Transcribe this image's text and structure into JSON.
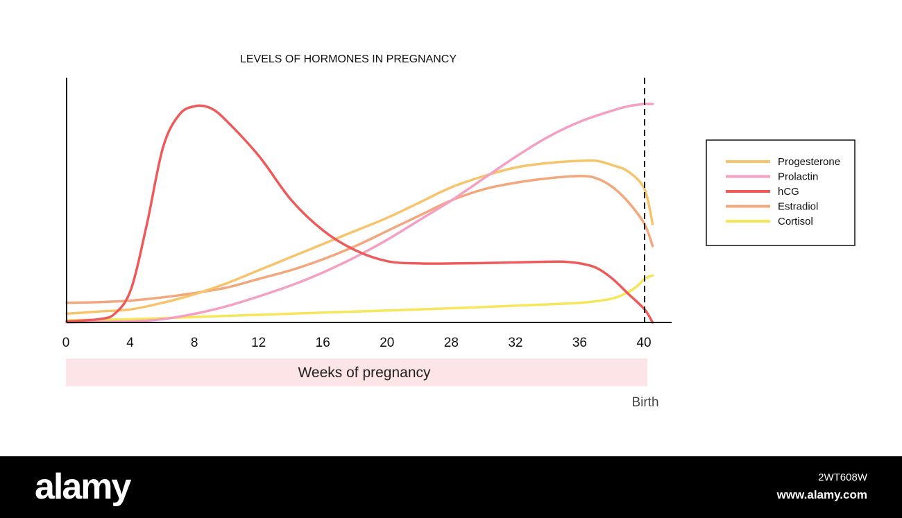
{
  "chart_data": {
    "type": "line",
    "title": "LEVELS OF HORMONES IN PREGNANCY",
    "xlabel": "Weeks of pregnancy",
    "ylabel": "",
    "x_ticks": [
      "0",
      "4",
      "8",
      "12",
      "16",
      "20",
      "28",
      "32",
      "36",
      "40"
    ],
    "ylim": [
      0,
      100
    ],
    "grid": false,
    "legend_position": "right",
    "annotation": "Birth",
    "series": [
      {
        "name": "Progesterone",
        "color": "#f7c46c",
        "points": [
          [
            0,
            4
          ],
          [
            2,
            5
          ],
          [
            4,
            6
          ],
          [
            6,
            9
          ],
          [
            8,
            13
          ],
          [
            10,
            18
          ],
          [
            12,
            24
          ],
          [
            14,
            30
          ],
          [
            16,
            36
          ],
          [
            18,
            42
          ],
          [
            20,
            48
          ],
          [
            22,
            55
          ],
          [
            24,
            62
          ],
          [
            26,
            67
          ],
          [
            28,
            71
          ],
          [
            30,
            73
          ],
          [
            32,
            74
          ],
          [
            33,
            74
          ],
          [
            34,
            72
          ],
          [
            35,
            69
          ],
          [
            36,
            61
          ],
          [
            36.5,
            45
          ]
        ]
      },
      {
        "name": "Prolactin",
        "color": "#f4a0c4",
        "points": [
          [
            0,
            0
          ],
          [
            4,
            0.5
          ],
          [
            6,
            1.5
          ],
          [
            8,
            4
          ],
          [
            10,
            7.5
          ],
          [
            12,
            12
          ],
          [
            14,
            17
          ],
          [
            16,
            23
          ],
          [
            18,
            30
          ],
          [
            20,
            38
          ],
          [
            22,
            47
          ],
          [
            24,
            56
          ],
          [
            26,
            66
          ],
          [
            28,
            76
          ],
          [
            30,
            85
          ],
          [
            32,
            92
          ],
          [
            34,
            97
          ],
          [
            35,
            99
          ],
          [
            36,
            100
          ],
          [
            36.5,
            100
          ]
        ]
      },
      {
        "name": "hCG",
        "color": "#ee5a5a",
        "points": [
          [
            0,
            0.5
          ],
          [
            2,
            1.5
          ],
          [
            3,
            4
          ],
          [
            4,
            15
          ],
          [
            5,
            45
          ],
          [
            6,
            80
          ],
          [
            7,
            95
          ],
          [
            8,
            99
          ],
          [
            9,
            98
          ],
          [
            10,
            92
          ],
          [
            12,
            76
          ],
          [
            14,
            56
          ],
          [
            16,
            42
          ],
          [
            18,
            33
          ],
          [
            20,
            28
          ],
          [
            22,
            27
          ],
          [
            24,
            27
          ],
          [
            26,
            27.2
          ],
          [
            28,
            27.5
          ],
          [
            30,
            27.8
          ],
          [
            31,
            27.8
          ],
          [
            32,
            27
          ],
          [
            33,
            25
          ],
          [
            34,
            20
          ],
          [
            35,
            13
          ],
          [
            36,
            6
          ],
          [
            36.5,
            0
          ]
        ]
      },
      {
        "name": "Estradiol",
        "color": "#f2a77d",
        "points": [
          [
            0,
            9
          ],
          [
            2,
            9.3
          ],
          [
            4,
            10
          ],
          [
            6,
            11.5
          ],
          [
            8,
            13.5
          ],
          [
            10,
            16
          ],
          [
            12,
            20
          ],
          [
            14,
            24
          ],
          [
            16,
            29
          ],
          [
            18,
            35
          ],
          [
            20,
            42
          ],
          [
            22,
            49
          ],
          [
            24,
            56
          ],
          [
            26,
            61
          ],
          [
            28,
            64
          ],
          [
            30,
            66
          ],
          [
            32,
            67
          ],
          [
            33,
            66
          ],
          [
            34,
            62
          ],
          [
            35,
            55
          ],
          [
            36,
            45
          ],
          [
            36.5,
            35
          ]
        ]
      },
      {
        "name": "Cortisol",
        "color": "#f8e65a",
        "points": [
          [
            0,
            1
          ],
          [
            4,
            1.5
          ],
          [
            8,
            2.5
          ],
          [
            12,
            3.5
          ],
          [
            16,
            4.5
          ],
          [
            20,
            5.5
          ],
          [
            24,
            6.5
          ],
          [
            28,
            7.7
          ],
          [
            32,
            9
          ],
          [
            34,
            11
          ],
          [
            35,
            14
          ],
          [
            35.6,
            17
          ],
          [
            36,
            20
          ],
          [
            36.5,
            21.5
          ]
        ]
      }
    ]
  },
  "footer": {
    "logo": "alamy",
    "image_id": "2WT608W",
    "url": "www.alamy.com"
  }
}
